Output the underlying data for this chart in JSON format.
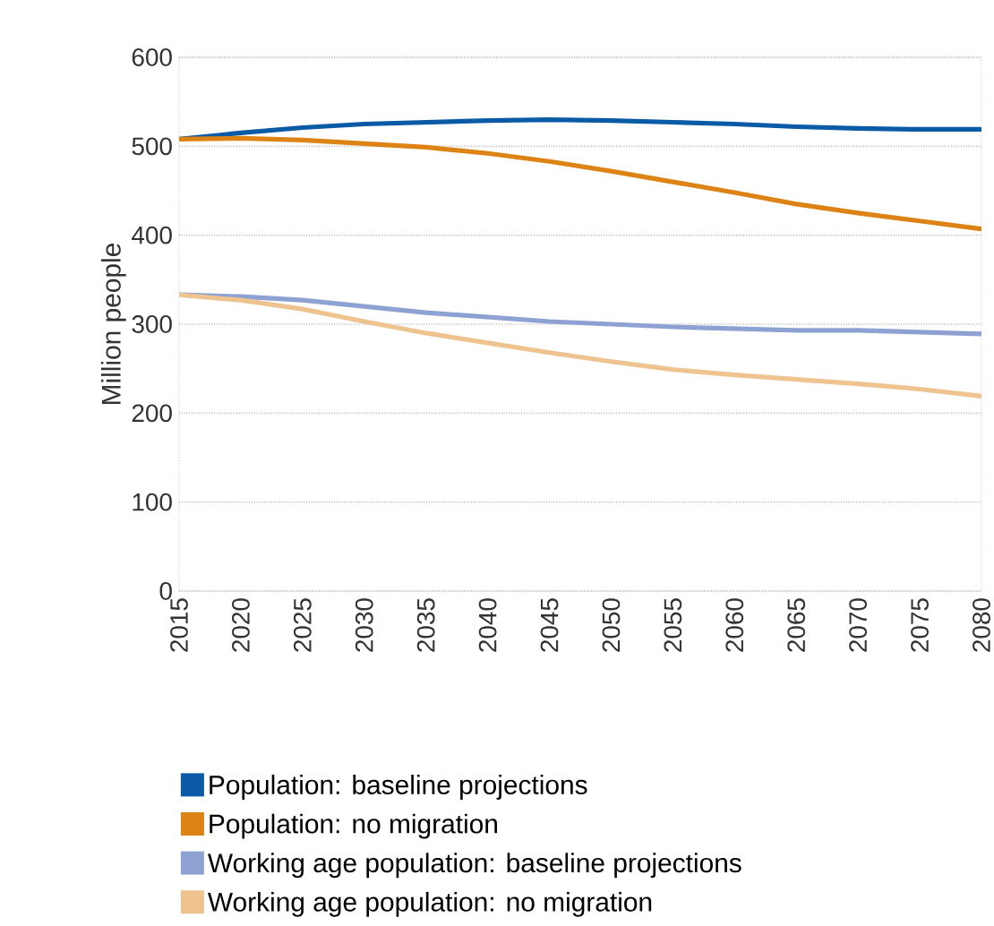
{
  "chart_data": {
    "type": "line",
    "ylabel": "Million people",
    "xlim": [
      2015,
      2080
    ],
    "ylim": [
      0,
      600
    ],
    "xticks": [
      2015,
      2020,
      2025,
      2030,
      2035,
      2040,
      2045,
      2050,
      2055,
      2060,
      2065,
      2070,
      2075,
      2080
    ],
    "yticks": [
      0,
      100,
      200,
      300,
      400,
      500,
      600
    ],
    "grid": "y",
    "legend": "bottom",
    "x": [
      2015,
      2020,
      2025,
      2030,
      2035,
      2040,
      2045,
      2050,
      2055,
      2060,
      2065,
      2070,
      2075,
      2080
    ],
    "series": [
      {
        "name": "Population: baseline projections",
        "color": "#0b5aa6",
        "values": [
          508,
          515,
          521,
          525,
          527,
          529,
          530,
          529,
          527,
          525,
          522,
          520,
          519,
          519
        ]
      },
      {
        "name": "Population: no migration",
        "color": "#dd8214",
        "values": [
          508,
          509,
          507,
          503,
          499,
          492,
          483,
          472,
          460,
          448,
          435,
          425,
          416,
          407
        ]
      },
      {
        "name": "Working age population: baseline projections",
        "color": "#8ea1d3",
        "values": [
          333,
          331,
          327,
          320,
          313,
          308,
          303,
          300,
          297,
          295,
          293,
          293,
          291,
          289
        ]
      },
      {
        "name": "Working age population: no migration",
        "color": "#efc38f",
        "values": [
          333,
          327,
          317,
          303,
          290,
          279,
          268,
          258,
          249,
          243,
          238,
          233,
          227,
          219
        ]
      }
    ]
  }
}
